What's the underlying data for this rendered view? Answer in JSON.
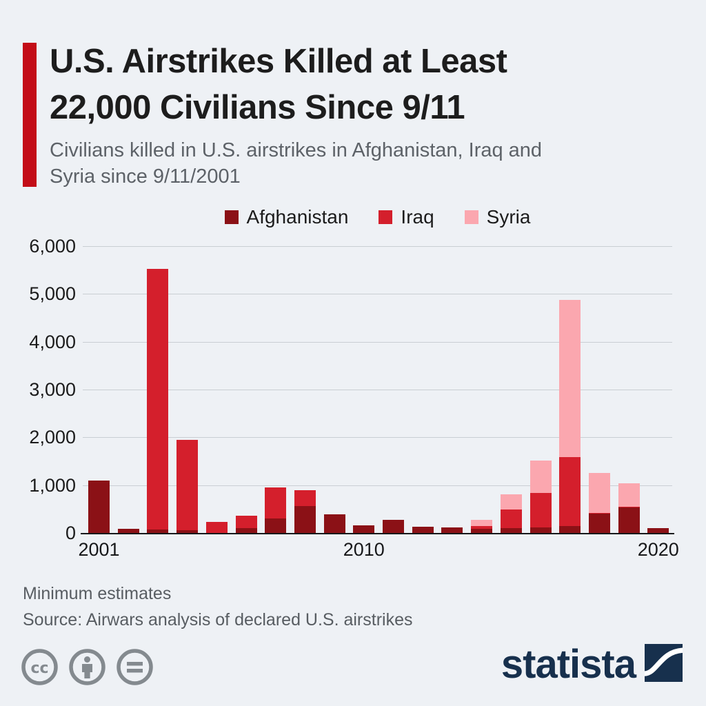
{
  "header": {
    "title_line1": "U.S. Airstrikes Killed at Least",
    "title_line2": "22,000 Civilians Since 9/11",
    "subtitle_line1": "Civilians killed in U.S. airstrikes in Afghanistan, Iraq and",
    "subtitle_line2": "Syria since 9/11/2001",
    "accent_color": "#c30d17"
  },
  "chart_data": {
    "type": "bar",
    "stacked": true,
    "title": "Civilians killed in U.S. airstrikes in Afghanistan, Iraq and Syria since 9/11/2001",
    "categories": [
      "2001",
      "2002",
      "2003",
      "2004",
      "2005",
      "2006",
      "2007",
      "2008",
      "2009",
      "2010",
      "2011",
      "2012",
      "2013",
      "2014",
      "2015",
      "2016",
      "2017",
      "2018",
      "2019",
      "2020"
    ],
    "series": [
      {
        "name": "Afghanistan",
        "color": "#8b1116",
        "values": [
          1090,
          85,
          70,
          60,
          0,
          100,
          310,
          560,
          390,
          155,
          275,
          125,
          115,
          85,
          100,
          120,
          150,
          400,
          535,
          95
        ]
      },
      {
        "name": "Iraq",
        "color": "#d41f2c",
        "values": [
          0,
          0,
          5450,
          1885,
          235,
          265,
          645,
          330,
          0,
          0,
          0,
          0,
          0,
          65,
          390,
          720,
          1430,
          25,
          15,
          0
        ]
      },
      {
        "name": "Syria",
        "color": "#fba7af",
        "values": [
          0,
          0,
          0,
          0,
          0,
          0,
          0,
          0,
          0,
          0,
          0,
          0,
          0,
          120,
          325,
          680,
          3290,
          830,
          485,
          0
        ]
      }
    ],
    "ylim": [
      0,
      6000
    ],
    "y_ticks": [
      {
        "value": 0,
        "label": "0"
      },
      {
        "value": 1000,
        "label": "1,000"
      },
      {
        "value": 2000,
        "label": "2,000"
      },
      {
        "value": 3000,
        "label": "3,000"
      },
      {
        "value": 4000,
        "label": "4,000"
      },
      {
        "value": 5000,
        "label": "5,000"
      },
      {
        "value": 6000,
        "label": "6,000"
      }
    ],
    "x_tick_labels": [
      {
        "index": 0,
        "label": "2001"
      },
      {
        "index": 9,
        "label": "2010"
      },
      {
        "index": 19,
        "label": "2020"
      }
    ],
    "grid": true,
    "legend_position": "top-center"
  },
  "footer": {
    "note": "Minimum estimates",
    "source": "Source: Airwars analysis of declared U.S. airstrikes"
  },
  "branding": {
    "logo_text": "statista",
    "logo_color": "#17304d",
    "license_icons": [
      "cc-icon",
      "attribution-icon",
      "no-derivatives-icon"
    ],
    "icon_color": "#848a8f"
  }
}
